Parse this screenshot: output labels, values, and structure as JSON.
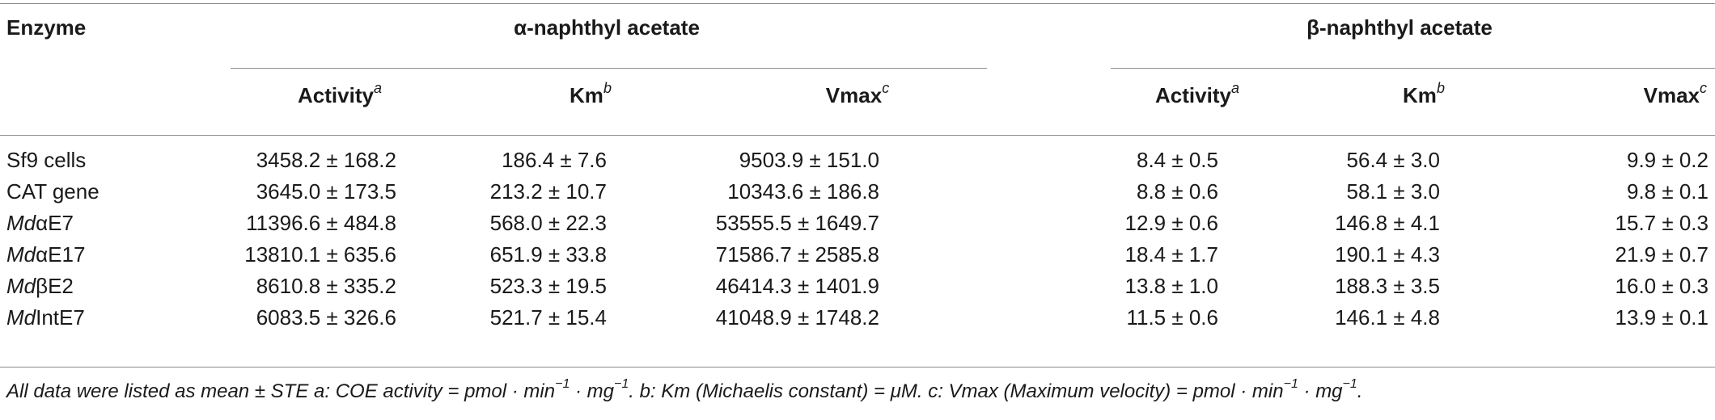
{
  "table": {
    "header": {
      "enzyme": "Enzyme",
      "group1": "α-naphthyl acetate",
      "group2": "β-naphthyl acetate",
      "sub": [
        {
          "label": "Activity",
          "sup": "a"
        },
        {
          "label": "Km",
          "sup": "b"
        },
        {
          "label": "Vmax",
          "sup": "c"
        },
        {
          "label": "Activity",
          "sup": "a"
        },
        {
          "label": "Km",
          "sup": "b"
        },
        {
          "label": "Vmax",
          "sup": "c"
        }
      ]
    },
    "rows": [
      {
        "prefix": "",
        "name": "Sf9 cells",
        "values": [
          "3458.2 ± 168.2",
          "186.4 ± 7.6",
          "9503.9 ± 151.0",
          "8.4 ± 0.5",
          "56.4 ± 3.0",
          "9.9 ± 0.2"
        ]
      },
      {
        "prefix": "",
        "name": "CAT gene",
        "values": [
          "3645.0 ± 173.5",
          "213.2 ± 10.7",
          "10343.6 ± 186.8",
          "8.8 ± 0.6",
          "58.1 ± 3.0",
          "9.8 ± 0.1"
        ]
      },
      {
        "prefix": "Md",
        "name": "αE7",
        "values": [
          "11396.6 ± 484.8",
          "568.0 ± 22.3",
          "53555.5 ± 1649.7",
          "12.9 ± 0.6",
          "146.8 ± 4.1",
          "15.7 ± 0.3"
        ]
      },
      {
        "prefix": "Md",
        "name": "αE17",
        "values": [
          "13810.1 ± 635.6",
          "651.9 ± 33.8",
          "71586.7 ± 2585.8",
          "18.4 ± 1.7",
          "190.1 ± 4.3",
          "21.9 ± 0.7"
        ]
      },
      {
        "prefix": "Md",
        "name": "βE2",
        "values": [
          "8610.8 ± 335.2",
          "523.3 ± 19.5",
          "46414.3 ± 1401.9",
          "13.8 ± 1.0",
          "188.3 ± 3.5",
          "16.0 ± 0.3"
        ]
      },
      {
        "prefix": "Md",
        "name": "IntE7",
        "values": [
          "6083.5 ± 326.6",
          "521.7 ± 15.4",
          "41048.9 ± 1748.2",
          "11.5 ± 0.6",
          "146.1 ± 4.8",
          "13.9 ± 0.1"
        ]
      }
    ],
    "footnote": {
      "part1": "All data were listed as mean ± STE a: COE activity = pmol · min",
      "sup1": "−1",
      "part2": " · mg",
      "sup2": "−1",
      "part3": ". b: Km (Michaelis constant) = μM. c: Vmax (Maximum velocity) = pmol · min",
      "sup3": "−1",
      "part4": " · mg",
      "sup4": "−1",
      "part5": "."
    }
  }
}
